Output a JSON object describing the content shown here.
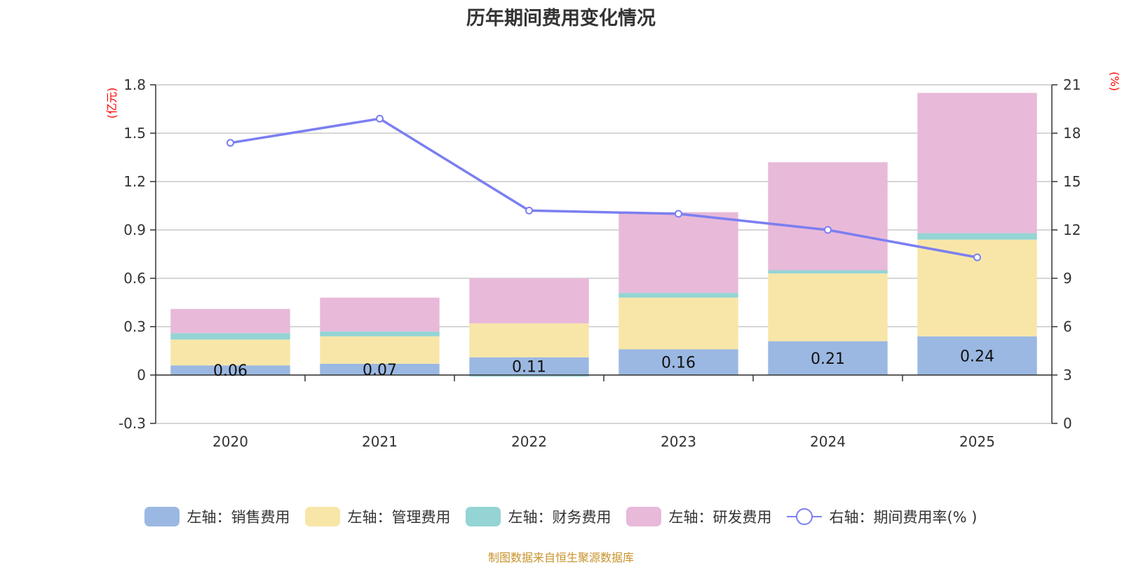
{
  "chart_data": {
    "type": "bar",
    "title": "历年期间费用变化情况",
    "categories": [
      "2020",
      "2021",
      "2022",
      "2023",
      "2024",
      "2025"
    ],
    "left_axis": {
      "unit": "(亿元)",
      "ylim": [
        -0.3,
        1.8
      ],
      "ticks": [
        "-0.3",
        "0",
        "0.3",
        "0.6",
        "0.9",
        "1.2",
        "1.5",
        "1.8"
      ]
    },
    "right_axis": {
      "unit": "(%)",
      "ylim": [
        0,
        21
      ],
      "ticks": [
        "0",
        "3",
        "6",
        "9",
        "12",
        "15",
        "18",
        "21"
      ]
    },
    "series": [
      {
        "name": "左轴：销售费用",
        "color": "#9bb8e2",
        "type": "bar",
        "values": [
          0.06,
          0.07,
          0.11,
          0.16,
          0.21,
          0.24
        ],
        "labels": [
          "0.06",
          "0.07",
          "0.11",
          "0.16",
          "0.21",
          "0.24"
        ]
      },
      {
        "name": "左轴：管理费用",
        "color": "#f8e6a8",
        "type": "bar",
        "values": [
          0.16,
          0.17,
          0.21,
          0.32,
          0.42,
          0.6
        ]
      },
      {
        "name": "左轴：财务费用",
        "color": "#95d4d4",
        "type": "bar",
        "values": [
          0.04,
          0.03,
          -0.01,
          0.03,
          0.02,
          0.04
        ]
      },
      {
        "name": "左轴：研发费用",
        "color": "#e8b9d9",
        "type": "bar",
        "values": [
          0.15,
          0.21,
          0.28,
          0.5,
          0.67,
          0.87
        ]
      },
      {
        "name": "右轴：期间费用率(% )",
        "color": "#7b7ff0",
        "type": "line",
        "axis": "right",
        "values": [
          17.4,
          18.9,
          13.2,
          13.0,
          12.0,
          10.3
        ]
      }
    ],
    "source": "制图数据来自恒生聚源数据库"
  }
}
